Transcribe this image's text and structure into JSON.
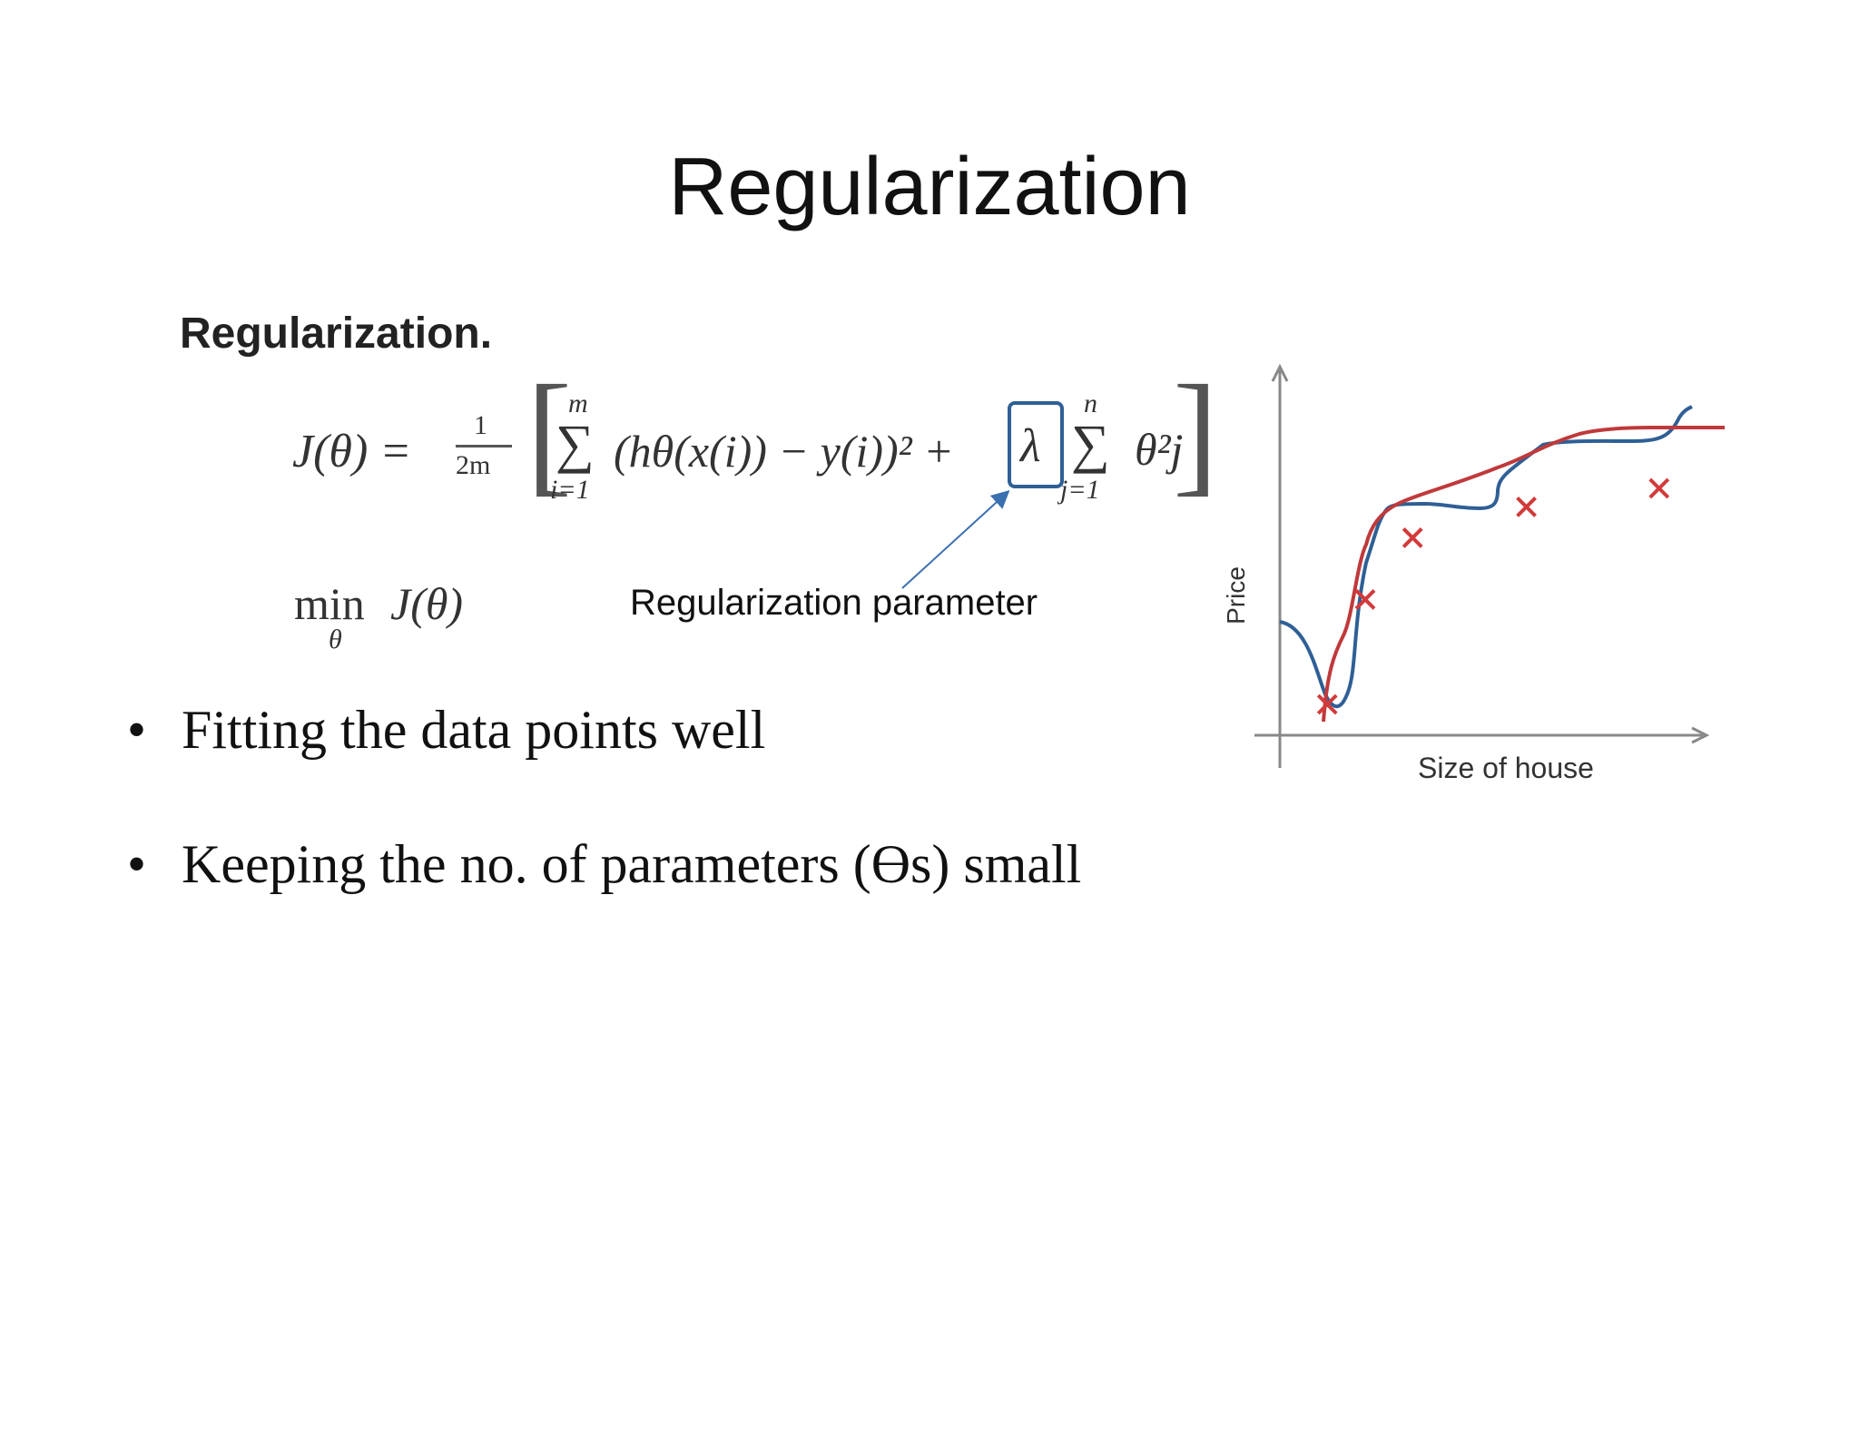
{
  "slide": {
    "title": "Regularization",
    "subtitle": "Regularization.",
    "equation": {
      "lhs": "J(θ) =",
      "frac_num": "1",
      "frac_den": "2m",
      "sum1_top": "m",
      "sum1_bottom": "i=1",
      "sum1_body": "(hθ(x(i)) − y(i))² +",
      "lambda": "λ",
      "sum2_top": "n",
      "sum2_bottom": "j=1",
      "sum2_body": "θ²j"
    },
    "minimize": {
      "min": "min",
      "sub": "θ",
      "expr": "J(θ)"
    },
    "annotation": "Regularization parameter",
    "bullets": [
      "Fitting the data points well",
      "Keeping the no. of parameters (Ɵs) small"
    ],
    "bullet_symbol": "•"
  },
  "chart_data": {
    "type": "line",
    "xlabel": "Size of house",
    "ylabel": "Price",
    "grid": false,
    "points": [
      {
        "x": 1.0,
        "y": 0.5
      },
      {
        "x": 1.8,
        "y": 2.2
      },
      {
        "x": 2.8,
        "y": 3.2
      },
      {
        "x": 5.2,
        "y": 3.7
      },
      {
        "x": 8.0,
        "y": 4.0
      }
    ],
    "series": [
      {
        "color": "#2f5f95"
      },
      {
        "color": "#c0393b"
      }
    ],
    "marker_color": "#d23a3a"
  }
}
